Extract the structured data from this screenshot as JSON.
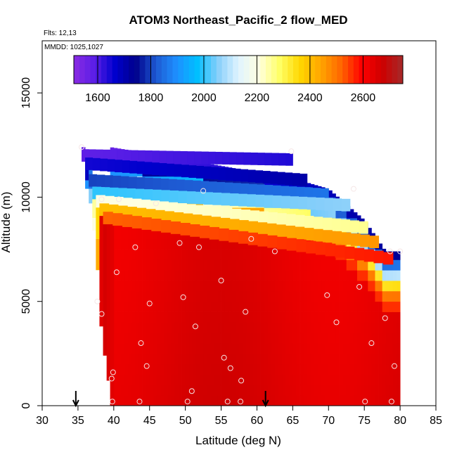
{
  "chart_data": {
    "type": "heatmap",
    "title": "ATOM3 Northeast_Pacific_2 flow_MED",
    "flights_note": "Flts: 12,13",
    "dates_note": "MMDD: 1025,1027",
    "xlabel": "Latitude (deg N)",
    "ylabel": "Altitude (m)",
    "xlim": [
      30,
      85
    ],
    "ylim": [
      0,
      17500
    ],
    "x_ticks": [
      30,
      35,
      40,
      45,
      50,
      55,
      60,
      65,
      70,
      75,
      80,
      85
    ],
    "y_ticks": [
      0,
      5000,
      10000,
      15000
    ],
    "colorbar": {
      "range": [
        1510,
        2750
      ],
      "ticks": [
        1600,
        1800,
        2000,
        2200,
        2400,
        2600
      ],
      "colors": [
        "#8a2be2",
        "#5a1ee6",
        "#0000cd",
        "#00008b",
        "#1e5ad2",
        "#1e90ff",
        "#00bfff",
        "#87cefa",
        "#e0f4ff",
        "#ffffe0",
        "#ffff66",
        "#ffd700",
        "#ffa500",
        "#ff6600",
        "#ff0000",
        "#cd0000",
        "#a52a2a"
      ]
    },
    "column_profiles": [
      {
        "lat": 35.5,
        "bands": [
          [
            11800,
            12400,
            1560
          ]
        ]
      },
      {
        "lat": 36,
        "bands": [
          [
            10800,
            11800,
            1680
          ],
          [
            10400,
            10800,
            1900
          ]
        ]
      },
      {
        "lat": 36.5,
        "bands": [
          [
            10400,
            11400,
            1860
          ],
          [
            9700,
            10400,
            2050
          ]
        ]
      },
      {
        "lat": 37,
        "bands": [
          [
            9000,
            10400,
            2250
          ],
          [
            8400,
            9000,
            2200
          ]
        ]
      },
      {
        "lat": 37.5,
        "bands": [
          [
            8000,
            10000,
            2360
          ],
          [
            6500,
            8000,
            2430
          ]
        ]
      },
      {
        "lat": 38,
        "bands": [
          [
            9600,
            10000,
            2500
          ],
          [
            3800,
            9600,
            2640
          ]
        ]
      },
      {
        "lat": 38.5,
        "bands": [
          [
            2400,
            9900,
            2660
          ]
        ]
      },
      {
        "lat": 39,
        "bands": [
          [
            1200,
            9900,
            2650
          ]
        ]
      },
      {
        "lat": 39.5,
        "bands": [
          [
            0,
            9900,
            2640
          ]
        ]
      }
    ],
    "ceiling_profile": {
      "lat": [
        39.5,
        45,
        50,
        55,
        60,
        65,
        70,
        75,
        78,
        80
      ],
      "alt_top": [
        12400,
        12100,
        11800,
        11500,
        11200,
        10900,
        10400,
        8900,
        7400,
        7400
      ]
    },
    "level_contours": [
      {
        "value": 1580,
        "lat_start": 35.5,
        "lat_end": 65,
        "alt_start": 12000,
        "alt_end": 11800
      },
      {
        "value": 1650,
        "lat_start": 36,
        "lat_end": 67,
        "alt_start": 11600,
        "alt_end": 10800
      },
      {
        "value": 1800,
        "lat_start": 36.5,
        "lat_end": 70,
        "alt_start": 10800,
        "alt_end": 10100
      },
      {
        "value": 2000,
        "lat_start": 37,
        "lat_end": 73,
        "alt_start": 10200,
        "alt_end": 9600
      },
      {
        "value": 2200,
        "lat_start": 37.5,
        "lat_end": 75.5,
        "alt_start": 9800,
        "alt_end": 8500
      },
      {
        "value": 2400,
        "lat_start": 38,
        "lat_end": 77,
        "alt_start": 9400,
        "alt_end": 7800
      },
      {
        "value": 2520,
        "lat_start": 38.5,
        "lat_end": 79,
        "alt_start": 9000,
        "alt_end": 7000
      }
    ],
    "sample_points": [
      [
        35.5,
        12400
      ],
      [
        64.8,
        12200
      ],
      [
        38.3,
        9900
      ],
      [
        40.7,
        9900
      ],
      [
        45.9,
        9700
      ],
      [
        52.5,
        10300
      ],
      [
        73.5,
        10400
      ],
      [
        59.2,
        8000
      ],
      [
        49.2,
        7800
      ],
      [
        51.9,
        7600
      ],
      [
        43.0,
        7600
      ],
      [
        62.5,
        7400
      ],
      [
        78.6,
        7400
      ],
      [
        80.0,
        7400
      ],
      [
        40.4,
        6400
      ],
      [
        55.0,
        6000
      ],
      [
        74.3,
        5700
      ],
      [
        69.8,
        5300
      ],
      [
        49.7,
        5200
      ],
      [
        37.7,
        5000
      ],
      [
        45.0,
        4900
      ],
      [
        38.3,
        4400
      ],
      [
        58.4,
        4500
      ],
      [
        71.1,
        4000
      ],
      [
        77.9,
        4200
      ],
      [
        51.4,
        3800
      ],
      [
        43.8,
        3000
      ],
      [
        76.0,
        3000
      ],
      [
        55.4,
        2300
      ],
      [
        44.6,
        1900
      ],
      [
        56.3,
        1800
      ],
      [
        79.2,
        1900
      ],
      [
        39.9,
        1600
      ],
      [
        39.7,
        1300
      ],
      [
        57.8,
        1200
      ],
      [
        50.9,
        700
      ],
      [
        39.8,
        200
      ],
      [
        43.6,
        200
      ],
      [
        50.3,
        200
      ],
      [
        55.9,
        200
      ],
      [
        57.7,
        200
      ],
      [
        75.1,
        200
      ],
      [
        78.8,
        200
      ]
    ],
    "arrow_markers": [
      34.7,
      61.2
    ]
  }
}
